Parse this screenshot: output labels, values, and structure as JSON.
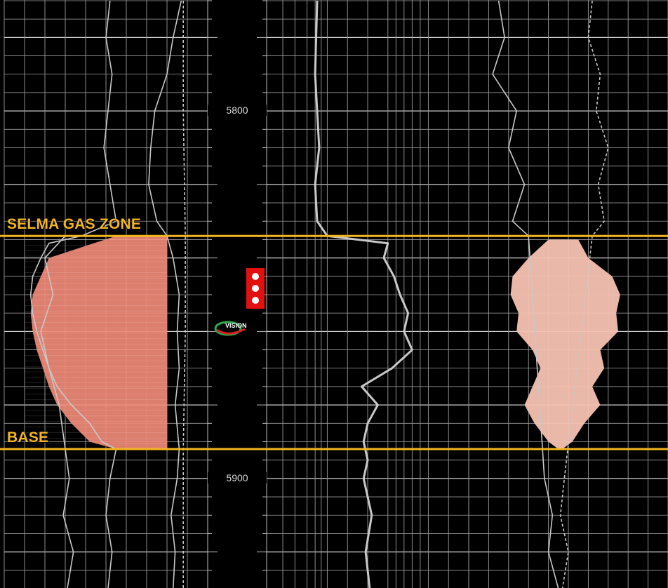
{
  "chart_data": {
    "type": "line",
    "title": "",
    "depth_track": {
      "depth_labels": [
        "5800",
        "5900"
      ],
      "depth_range": [
        5770,
        5930
      ],
      "major_tick_interval": 20,
      "minor_tick_interval": 5
    },
    "zones": [
      {
        "label": "SELMA GAS ZONE",
        "depth": 5834,
        "role": "top"
      },
      {
        "label": "BASE",
        "depth": 5892,
        "role": "base"
      }
    ],
    "grid": true,
    "background_color": "#000000",
    "curve_color": "#c8c8c8",
    "zone_line_color": "#f2b51f",
    "track1_fill_color": "#f08a78",
    "track3_fill_color": "#f5c2b2",
    "series": [
      {
        "track": 1,
        "style": "solid-thin",
        "depth": [
          5770,
          5780,
          5790,
          5800,
          5810,
          5820,
          5830,
          5834,
          5836,
          5840,
          5845,
          5850,
          5855,
          5860,
          5865,
          5870,
          5875,
          5880,
          5885,
          5890,
          5892,
          5900,
          5910,
          5920,
          5930
        ],
        "values": [
          0.52,
          0.5,
          0.53,
          0.51,
          0.49,
          0.52,
          0.55,
          0.38,
          0.22,
          0.18,
          0.14,
          0.13,
          0.14,
          0.16,
          0.19,
          0.22,
          0.26,
          0.33,
          0.42,
          0.48,
          0.55,
          0.52,
          0.5,
          0.53,
          0.51
        ]
      },
      {
        "track": 1,
        "style": "solid-thin",
        "depth": [
          5770,
          5780,
          5790,
          5800,
          5810,
          5820,
          5830,
          5834,
          5840,
          5850,
          5860,
          5870,
          5880,
          5892,
          5900,
          5910,
          5920,
          5930
        ],
        "values": [
          0.87,
          0.83,
          0.8,
          0.74,
          0.72,
          0.71,
          0.75,
          0.8,
          0.83,
          0.86,
          0.85,
          0.86,
          0.84,
          0.86,
          0.85,
          0.82,
          0.84,
          0.83
        ]
      },
      {
        "track": 1,
        "style": "dashed",
        "depth": [
          5770,
          5800,
          5834,
          5860,
          5892,
          5930
        ],
        "values": [
          0.88,
          0.88,
          0.89,
          0.89,
          0.88,
          0.88
        ]
      },
      {
        "track": 1,
        "style": "solid-thin",
        "depth": [
          5834,
          5840,
          5850,
          5860,
          5870,
          5880,
          5892,
          5900,
          5910,
          5920,
          5930
        ],
        "values": [
          0.3,
          0.2,
          0.24,
          0.18,
          0.22,
          0.27,
          0.3,
          0.32,
          0.29,
          0.34,
          0.31
        ]
      },
      {
        "track": 2,
        "style": "solid-thick",
        "depth": [
          5770,
          5790,
          5810,
          5820,
          5830,
          5834,
          5836,
          5840,
          5845,
          5850,
          5855,
          5860,
          5865,
          5870,
          5875,
          5880,
          5885,
          5890,
          5895,
          5900,
          5910,
          5920,
          5930
        ],
        "values": [
          0.25,
          0.24,
          0.26,
          0.24,
          0.25,
          0.3,
          0.6,
          0.58,
          0.63,
          0.66,
          0.7,
          0.68,
          0.72,
          0.62,
          0.47,
          0.55,
          0.5,
          0.48,
          0.5,
          0.48,
          0.52,
          0.49,
          0.51
        ]
      },
      {
        "track": 3,
        "style": "solid-thin",
        "depth": [
          5770,
          5780,
          5790,
          5800,
          5810,
          5820,
          5830,
          5834,
          5900,
          5910,
          5920,
          5930
        ],
        "values": [
          0.15,
          0.18,
          0.12,
          0.24,
          0.2,
          0.28,
          0.22,
          0.3,
          0.38,
          0.42,
          0.4,
          0.45
        ]
      },
      {
        "track": 3,
        "style": "dashed",
        "depth": [
          5770,
          5780,
          5790,
          5800,
          5810,
          5820,
          5830,
          5834,
          5900,
          5910,
          5920,
          5930
        ],
        "values": [
          0.62,
          0.6,
          0.66,
          0.64,
          0.7,
          0.65,
          0.68,
          0.62,
          0.48,
          0.46,
          0.5,
          0.47
        ]
      }
    ],
    "fills": [
      {
        "track": 1,
        "depth": [
          5834,
          5840,
          5845,
          5850,
          5855,
          5860,
          5865,
          5870,
          5875,
          5880,
          5885,
          5890,
          5892
        ],
        "left_values": [
          0.55,
          0.22,
          0.18,
          0.14,
          0.13,
          0.14,
          0.16,
          0.19,
          0.22,
          0.26,
          0.33,
          0.42,
          0.55
        ],
        "right_value": 0.8
      },
      {
        "track": 3,
        "depth": [
          5835,
          5840,
          5845,
          5850,
          5855,
          5860,
          5865,
          5870,
          5875,
          5880,
          5885,
          5890,
          5892
        ],
        "left_values": [
          0.4,
          0.3,
          0.22,
          0.21,
          0.25,
          0.24,
          0.32,
          0.36,
          0.32,
          0.28,
          0.33,
          0.4,
          0.45
        ],
        "right_values": [
          0.55,
          0.6,
          0.72,
          0.76,
          0.74,
          0.75,
          0.66,
          0.68,
          0.62,
          0.66,
          0.58,
          0.52,
          0.47
        ]
      }
    ],
    "perforation_shots": 3,
    "logo_text": "VISION"
  }
}
